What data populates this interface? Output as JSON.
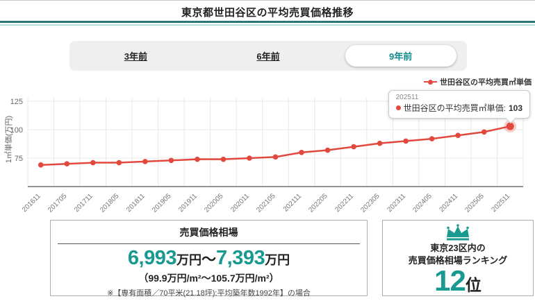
{
  "header": {
    "title": "東京都世田谷区の平均売買価格推移"
  },
  "tabs": [
    {
      "label": "3年前",
      "active": false
    },
    {
      "label": "6年前",
      "active": false
    },
    {
      "label": "9年前",
      "active": true
    }
  ],
  "chart_data": {
    "type": "line",
    "title": "東京都世田谷区の平均売買価格推移",
    "ylabel": "1㎡単価(万円)",
    "xlabel": "",
    "categories": [
      "201611",
      "201705",
      "201711",
      "201805",
      "201811",
      "201905",
      "201911",
      "202005",
      "202011",
      "202105",
      "202111",
      "202205",
      "202211",
      "202305",
      "202311",
      "202405",
      "202411",
      "202505",
      "202511"
    ],
    "series": [
      {
        "name": "世田谷区の平均売買㎡単価",
        "values": [
          69,
          70,
          71,
          71,
          72,
          73,
          74,
          74,
          75,
          76,
          80,
          82,
          85,
          88,
          90,
          92,
          95,
          98,
          103
        ]
      }
    ],
    "yticks": [
      75,
      100,
      125
    ],
    "ylim": [
      62,
      130
    ],
    "grid": true,
    "legend_position": "top-right",
    "highlight_index": 18
  },
  "tooltip": {
    "date": "202511",
    "label_with_colon": "世田谷区の平均売買㎡単価:",
    "value": "103"
  },
  "price_box": {
    "title": "売買価格相場",
    "low": "6,993",
    "low_unit": "万円",
    "tilde": "〜",
    "high": "7,393",
    "high_unit": "万円",
    "per_sqm": "（99.9万円/m²〜105.7万円/m²）",
    "note": "※【専有面積／70平米(21.18坪):平均築年数1992年】の場合"
  },
  "ranking_box": {
    "line1": "東京23区内の",
    "line2": "売買価格相場ランキング",
    "rank": "12",
    "rank_suffix": "位",
    "icon": "crown-icon"
  },
  "colors": {
    "accent_teal": "#189a91",
    "tab_active_teal": "#0f8b8d",
    "rule_dark_teal": "#2a767b",
    "rule_light_teal": "#b4dcdd",
    "line_red": "#e2483d",
    "grid_gray": "#e8e8e8",
    "axis_gray": "#555555",
    "tick_text": "#777777"
  }
}
